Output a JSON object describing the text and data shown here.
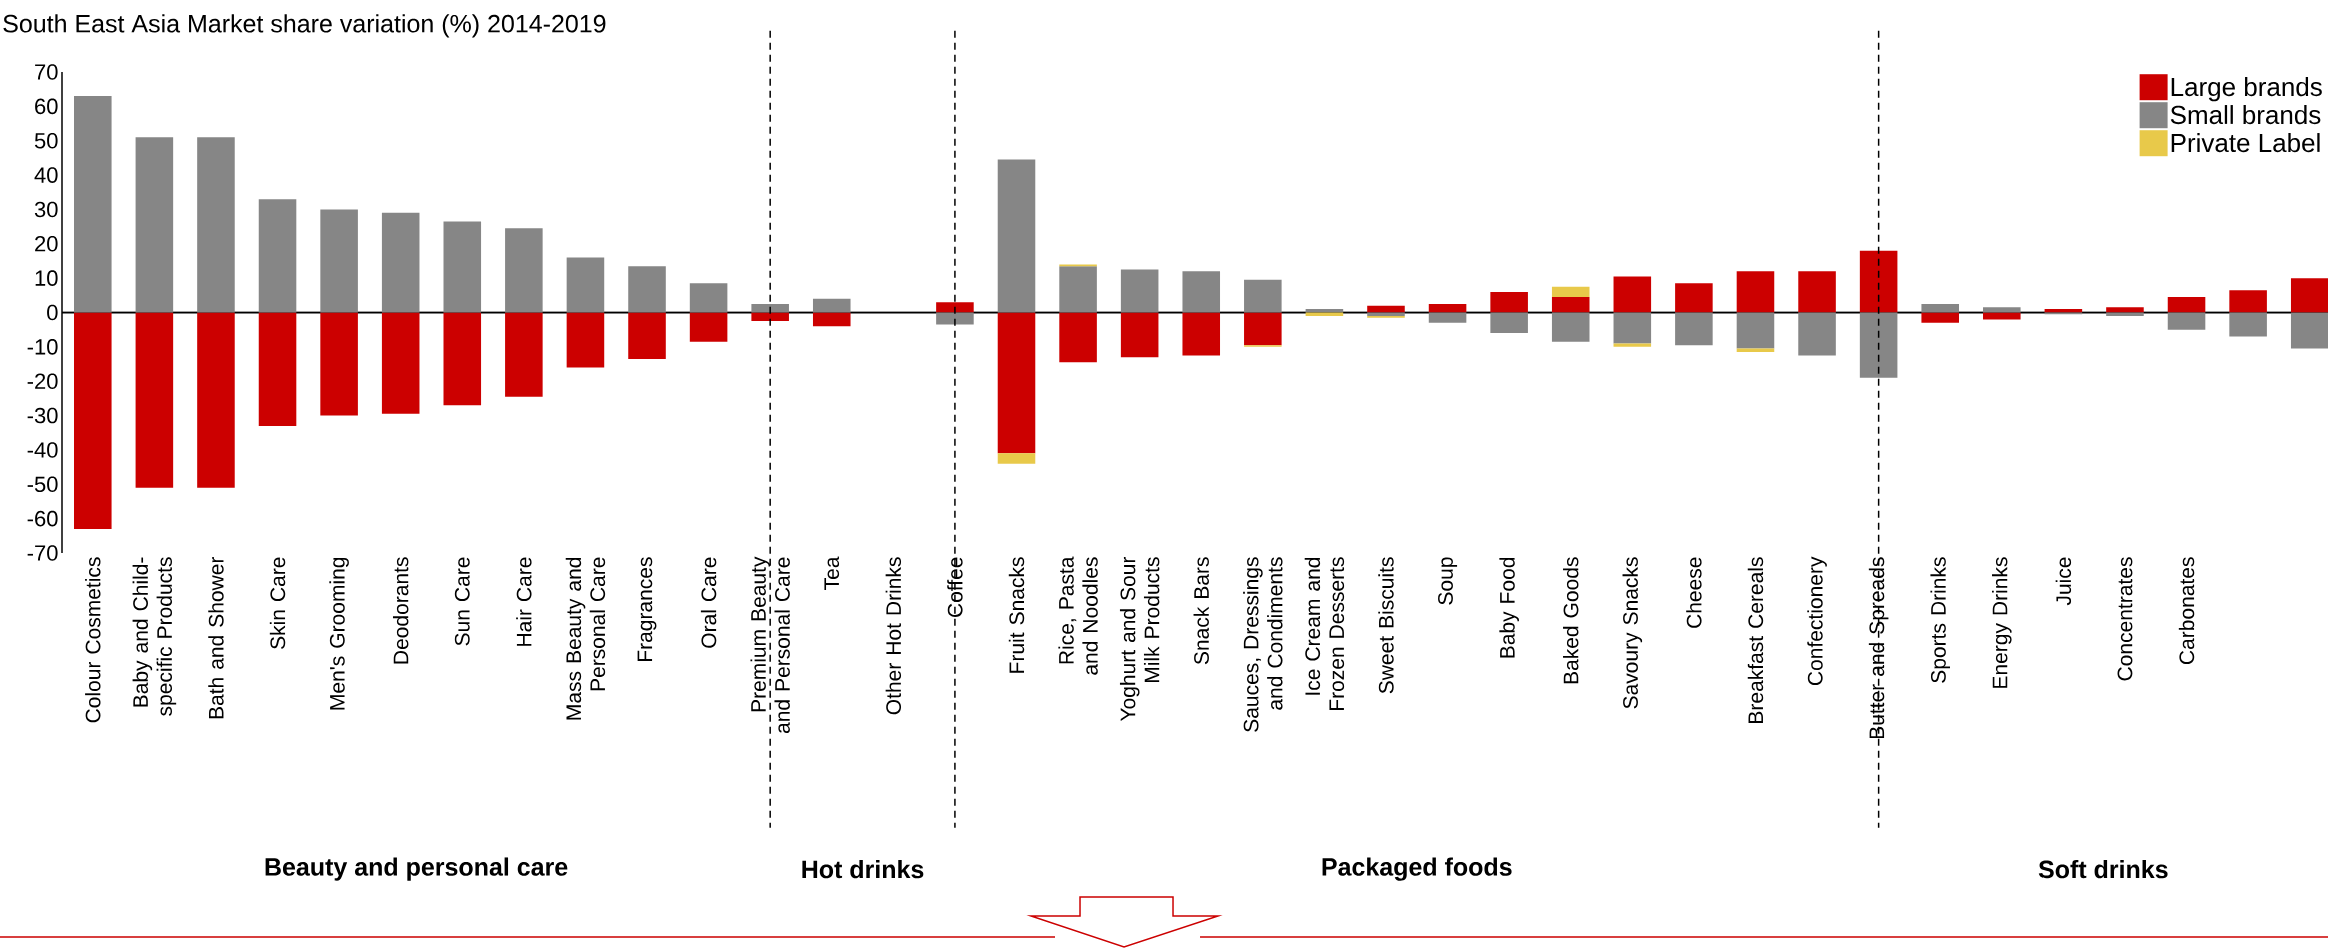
{
  "chart_data": {
    "type": "bar",
    "stacked": true,
    "title": "South East Asia Market share variation (%) 2014-2019",
    "categories": [
      "Colour Cosmetics",
      "Baby and Child-specific Products",
      "Bath and Shower",
      "Skin Care",
      "Men's Grooming",
      "Deodorants",
      "Sun Care",
      "Hair Care",
      "Mass Beauty and Personal Care",
      "Fragrances",
      "Oral Care",
      "Premium Beauty and Personal Care",
      "Tea",
      "Other Hot Drinks",
      "Coffee",
      "Fruit Snacks",
      "Rice, Pasta and Noodles",
      "Yoghurt and Sour Milk Products",
      "Snack Bars",
      "Sauces, Dressings and Condiments",
      "Ice Cream and Frozen Desserts",
      "Sweet Biscuits",
      "Soup",
      "Baby Food",
      "Baked Goods",
      "Savoury Snacks",
      "Cheese",
      "Breakfast Cereals",
      "Confectionery",
      "Butter and Spreads",
      "Sports Drinks",
      "Energy Drinks",
      "Juice",
      "Concentrates",
      "Carbonates",
      null,
      null
    ],
    "series": [
      {
        "name": "Large brands",
        "color": "#cc0000",
        "values": [
          -63,
          -51,
          -51,
          -33,
          -30,
          -29.5,
          -27,
          -24.5,
          -16,
          -13.5,
          -8.5,
          -2.5,
          -4,
          null,
          3,
          -41,
          -14.5,
          -13,
          -12.5,
          -9.5,
          null,
          2,
          2.5,
          6,
          4.5,
          10.5,
          8.5,
          12,
          12,
          18,
          -3,
          -2,
          1,
          1.5,
          4.5,
          6.5,
          10
        ]
      },
      {
        "name": "Small brands",
        "color": "#868686",
        "values": [
          63,
          51,
          51,
          33,
          30,
          29,
          26.5,
          24.5,
          16,
          13.5,
          8.5,
          2.5,
          4,
          null,
          -3.5,
          44.5,
          13.5,
          12.5,
          12,
          9.5,
          1,
          -1,
          -3,
          -6,
          -8.5,
          -9,
          -9.5,
          -10.5,
          -12.5,
          -19,
          2.5,
          1.5,
          -0.5,
          -1,
          -5,
          -7,
          -10.5
        ]
      },
      {
        "name": "Private Label",
        "color": "#e8c94a",
        "values": [
          null,
          null,
          null,
          null,
          null,
          null,
          null,
          null,
          null,
          null,
          null,
          null,
          null,
          null,
          null,
          -3,
          0.5,
          null,
          null,
          -0.5,
          -1,
          -0.5,
          null,
          null,
          3,
          -1,
          null,
          -1,
          null,
          null,
          null,
          null,
          null,
          null,
          null,
          null,
          null
        ]
      }
    ],
    "ylim": [
      -70,
      70
    ],
    "yticks": [
      -70,
      -60,
      -50,
      -40,
      -30,
      -20,
      -10,
      0,
      10,
      20,
      30,
      40,
      50,
      60,
      70
    ],
    "ref_lines": [
      {
        "axis": "x",
        "value": "Premium Beauty and Personal Care",
        "line_style": "dashed"
      },
      {
        "axis": "x",
        "value": "Coffee",
        "line_style": "dashed"
      },
      {
        "axis": "x",
        "value": "Butter and Spreads",
        "line_style": "dashed"
      }
    ],
    "annotations": [
      "Beauty and personal care",
      "Hot drinks",
      "Packaged foods",
      "Soft drinks"
    ],
    "legend": "top right"
  }
}
